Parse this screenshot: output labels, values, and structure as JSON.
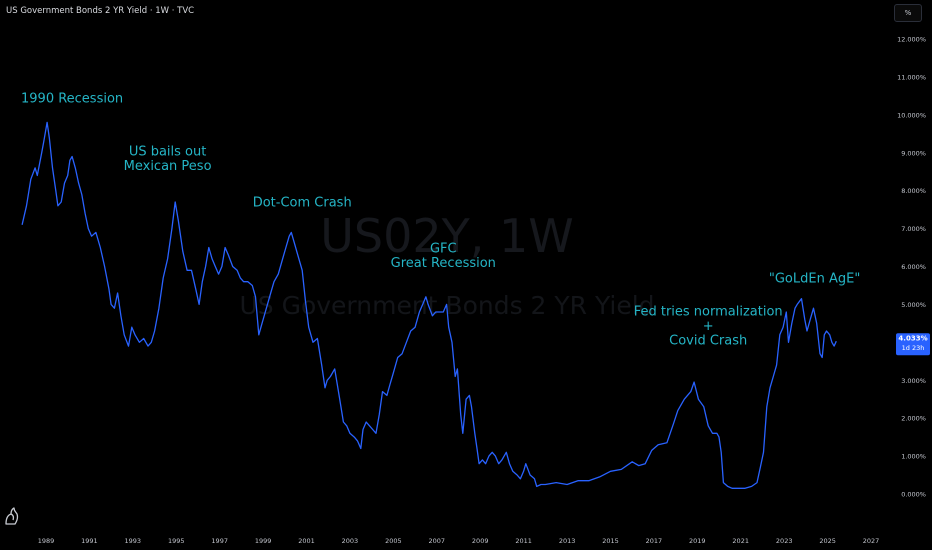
{
  "header": {
    "title": "US Government Bonds 2 YR Yield · 1W · TVC",
    "unit_label": "%"
  },
  "watermark": {
    "symbol": "US02Y, 1W",
    "name": "US Government Bonds 2 YR Yield"
  },
  "last_price": {
    "value": "4.033%",
    "countdown": "1d 23h",
    "raw": 4.03
  },
  "colors": {
    "line": "#2962ff",
    "annotation": "#25b5c6",
    "price_tag": "#2962ff",
    "background": "#000000"
  },
  "icons": [
    "tradingview-logo-icon"
  ],
  "chart_data": {
    "type": "line",
    "title": "US Government Bonds 2 YR Yield · 1W · TVC",
    "xlabel": "",
    "ylabel": "",
    "xlim": [
      1988.0,
      2027.5
    ],
    "ylim": [
      -0.5,
      12.5
    ],
    "grid": false,
    "y_ticks": [
      {
        "value": 12,
        "label": "12.000%"
      },
      {
        "value": 11,
        "label": "11.000%"
      },
      {
        "value": 10,
        "label": "10.000%"
      },
      {
        "value": 9,
        "label": "9.000%"
      },
      {
        "value": 8,
        "label": "8.000%"
      },
      {
        "value": 7,
        "label": "7.000%"
      },
      {
        "value": 6,
        "label": "6.000%"
      },
      {
        "value": 5,
        "label": "5.000%"
      },
      {
        "value": 3,
        "label": "3.000%"
      },
      {
        "value": 2,
        "label": "2.000%"
      },
      {
        "value": 1,
        "label": "1.000%"
      },
      {
        "value": 0,
        "label": "0.000%"
      }
    ],
    "x_ticks": [
      {
        "value": 1989,
        "label": "1989"
      },
      {
        "value": 1991,
        "label": "1991"
      },
      {
        "value": 1993,
        "label": "1993"
      },
      {
        "value": 1995,
        "label": "1995"
      },
      {
        "value": 1997,
        "label": "1997"
      },
      {
        "value": 1999,
        "label": "1999"
      },
      {
        "value": 2001,
        "label": "2001"
      },
      {
        "value": 2003,
        "label": "2003"
      },
      {
        "value": 2005,
        "label": "2005"
      },
      {
        "value": 2007,
        "label": "2007"
      },
      {
        "value": 2009,
        "label": "2009"
      },
      {
        "value": 2011,
        "label": "2011"
      },
      {
        "value": 2013,
        "label": "2013"
      },
      {
        "value": 2015,
        "label": "2015"
      },
      {
        "value": 2017,
        "label": "2017"
      },
      {
        "value": 2019,
        "label": "2019"
      },
      {
        "value": 2021,
        "label": "2021"
      },
      {
        "value": 2023,
        "label": "2023"
      },
      {
        "value": 2025,
        "label": "2025"
      },
      {
        "value": 2027,
        "label": "2027"
      }
    ],
    "series": [
      {
        "points": [
          [
            1987.9,
            7.1
          ],
          [
            1988.1,
            7.6
          ],
          [
            1988.3,
            8.3
          ],
          [
            1988.5,
            8.6
          ],
          [
            1988.6,
            8.4
          ],
          [
            1988.8,
            9.0
          ],
          [
            1988.9,
            9.3
          ],
          [
            1989.05,
            9.8
          ],
          [
            1989.15,
            9.4
          ],
          [
            1989.3,
            8.6
          ],
          [
            1989.45,
            8.0
          ],
          [
            1989.55,
            7.6
          ],
          [
            1989.7,
            7.7
          ],
          [
            1989.85,
            8.2
          ],
          [
            1990.0,
            8.4
          ],
          [
            1990.1,
            8.8
          ],
          [
            1990.2,
            8.9
          ],
          [
            1990.35,
            8.6
          ],
          [
            1990.5,
            8.2
          ],
          [
            1990.65,
            7.9
          ],
          [
            1990.8,
            7.4
          ],
          [
            1990.95,
            7.0
          ],
          [
            1991.1,
            6.8
          ],
          [
            1991.3,
            6.9
          ],
          [
            1991.5,
            6.5
          ],
          [
            1991.7,
            6.0
          ],
          [
            1991.9,
            5.4
          ],
          [
            1992.0,
            5.0
          ],
          [
            1992.15,
            4.9
          ],
          [
            1992.3,
            5.3
          ],
          [
            1992.45,
            4.7
          ],
          [
            1992.6,
            4.2
          ],
          [
            1992.8,
            3.9
          ],
          [
            1992.95,
            4.4
          ],
          [
            1993.1,
            4.2
          ],
          [
            1993.3,
            4.0
          ],
          [
            1993.5,
            4.1
          ],
          [
            1993.7,
            3.9
          ],
          [
            1993.85,
            4.0
          ],
          [
            1994.0,
            4.3
          ],
          [
            1994.2,
            4.9
          ],
          [
            1994.4,
            5.7
          ],
          [
            1994.6,
            6.2
          ],
          [
            1994.8,
            7.0
          ],
          [
            1994.95,
            7.7
          ],
          [
            1995.1,
            7.2
          ],
          [
            1995.3,
            6.4
          ],
          [
            1995.5,
            5.9
          ],
          [
            1995.7,
            5.9
          ],
          [
            1995.9,
            5.4
          ],
          [
            1996.05,
            5.0
          ],
          [
            1996.2,
            5.6
          ],
          [
            1996.35,
            6.0
          ],
          [
            1996.5,
            6.5
          ],
          [
            1996.65,
            6.2
          ],
          [
            1996.8,
            6.0
          ],
          [
            1996.95,
            5.8
          ],
          [
            1997.1,
            6.0
          ],
          [
            1997.25,
            6.5
          ],
          [
            1997.4,
            6.3
          ],
          [
            1997.6,
            6.0
          ],
          [
            1997.8,
            5.9
          ],
          [
            1997.95,
            5.7
          ],
          [
            1998.1,
            5.6
          ],
          [
            1998.3,
            5.6
          ],
          [
            1998.5,
            5.5
          ],
          [
            1998.65,
            5.2
          ],
          [
            1998.8,
            4.2
          ],
          [
            1998.95,
            4.5
          ],
          [
            1999.1,
            4.8
          ],
          [
            1999.3,
            5.2
          ],
          [
            1999.5,
            5.6
          ],
          [
            1999.7,
            5.8
          ],
          [
            1999.9,
            6.2
          ],
          [
            2000.05,
            6.5
          ],
          [
            2000.2,
            6.8
          ],
          [
            2000.3,
            6.9
          ],
          [
            2000.45,
            6.6
          ],
          [
            2000.6,
            6.3
          ],
          [
            2000.8,
            5.9
          ],
          [
            2000.95,
            5.1
          ],
          [
            2001.1,
            4.4
          ],
          [
            2001.3,
            4.0
          ],
          [
            2001.5,
            4.1
          ],
          [
            2001.7,
            3.4
          ],
          [
            2001.85,
            2.8
          ],
          [
            2001.95,
            3.0
          ],
          [
            2002.1,
            3.1
          ],
          [
            2002.3,
            3.3
          ],
          [
            2002.5,
            2.6
          ],
          [
            2002.7,
            1.9
          ],
          [
            2002.85,
            1.8
          ],
          [
            2003.0,
            1.6
          ],
          [
            2003.2,
            1.5
          ],
          [
            2003.35,
            1.4
          ],
          [
            2003.5,
            1.2
          ],
          [
            2003.6,
            1.7
          ],
          [
            2003.75,
            1.9
          ],
          [
            2003.9,
            1.8
          ],
          [
            2004.05,
            1.7
          ],
          [
            2004.2,
            1.6
          ],
          [
            2004.35,
            2.1
          ],
          [
            2004.5,
            2.7
          ],
          [
            2004.7,
            2.6
          ],
          [
            2004.85,
            2.9
          ],
          [
            2005.0,
            3.2
          ],
          [
            2005.2,
            3.6
          ],
          [
            2005.4,
            3.7
          ],
          [
            2005.6,
            4.0
          ],
          [
            2005.8,
            4.3
          ],
          [
            2006.0,
            4.4
          ],
          [
            2006.2,
            4.8
          ],
          [
            2006.35,
            5.0
          ],
          [
            2006.5,
            5.2
          ],
          [
            2006.6,
            5.0
          ],
          [
            2006.8,
            4.7
          ],
          [
            2006.95,
            4.8
          ],
          [
            2007.1,
            4.8
          ],
          [
            2007.3,
            4.8
          ],
          [
            2007.45,
            5.0
          ],
          [
            2007.55,
            4.4
          ],
          [
            2007.7,
            4.0
          ],
          [
            2007.85,
            3.1
          ],
          [
            2007.95,
            3.3
          ],
          [
            2008.1,
            2.1
          ],
          [
            2008.2,
            1.6
          ],
          [
            2008.35,
            2.5
          ],
          [
            2008.5,
            2.6
          ],
          [
            2008.6,
            2.3
          ],
          [
            2008.75,
            1.6
          ],
          [
            2008.85,
            1.2
          ],
          [
            2008.95,
            0.8
          ],
          [
            2009.1,
            0.9
          ],
          [
            2009.25,
            0.8
          ],
          [
            2009.4,
            1.0
          ],
          [
            2009.55,
            1.1
          ],
          [
            2009.7,
            1.0
          ],
          [
            2009.85,
            0.8
          ],
          [
            2010.0,
            0.9
          ],
          [
            2010.2,
            1.1
          ],
          [
            2010.35,
            0.8
          ],
          [
            2010.5,
            0.6
          ],
          [
            2010.7,
            0.5
          ],
          [
            2010.85,
            0.4
          ],
          [
            2011.0,
            0.6
          ],
          [
            2011.1,
            0.8
          ],
          [
            2011.3,
            0.5
          ],
          [
            2011.5,
            0.4
          ],
          [
            2011.6,
            0.2
          ],
          [
            2011.8,
            0.25
          ],
          [
            2012.0,
            0.25
          ],
          [
            2012.5,
            0.3
          ],
          [
            2013.0,
            0.25
          ],
          [
            2013.5,
            0.35
          ],
          [
            2014.0,
            0.35
          ],
          [
            2014.5,
            0.45
          ],
          [
            2015.0,
            0.6
          ],
          [
            2015.5,
            0.65
          ],
          [
            2016.0,
            0.85
          ],
          [
            2016.3,
            0.75
          ],
          [
            2016.6,
            0.8
          ],
          [
            2016.9,
            1.15
          ],
          [
            2017.2,
            1.3
          ],
          [
            2017.6,
            1.35
          ],
          [
            2017.9,
            1.85
          ],
          [
            2018.1,
            2.2
          ],
          [
            2018.4,
            2.5
          ],
          [
            2018.7,
            2.7
          ],
          [
            2018.85,
            2.95
          ],
          [
            2019.05,
            2.5
          ],
          [
            2019.3,
            2.3
          ],
          [
            2019.5,
            1.8
          ],
          [
            2019.7,
            1.6
          ],
          [
            2019.9,
            1.6
          ],
          [
            2020.0,
            1.5
          ],
          [
            2020.1,
            1.1
          ],
          [
            2020.2,
            0.3
          ],
          [
            2020.4,
            0.2
          ],
          [
            2020.6,
            0.15
          ],
          [
            2020.9,
            0.15
          ],
          [
            2021.2,
            0.15
          ],
          [
            2021.5,
            0.2
          ],
          [
            2021.75,
            0.3
          ],
          [
            2021.9,
            0.7
          ],
          [
            2022.05,
            1.1
          ],
          [
            2022.2,
            2.3
          ],
          [
            2022.35,
            2.8
          ],
          [
            2022.5,
            3.1
          ],
          [
            2022.65,
            3.4
          ],
          [
            2022.8,
            4.2
          ],
          [
            2022.95,
            4.4
          ],
          [
            2023.1,
            4.8
          ],
          [
            2023.2,
            4.0
          ],
          [
            2023.35,
            4.5
          ],
          [
            2023.5,
            4.9
          ],
          [
            2023.6,
            5.0
          ],
          [
            2023.8,
            5.15
          ],
          [
            2023.95,
            4.6
          ],
          [
            2024.05,
            4.3
          ],
          [
            2024.2,
            4.6
          ],
          [
            2024.35,
            4.9
          ],
          [
            2024.5,
            4.5
          ],
          [
            2024.65,
            3.7
          ],
          [
            2024.75,
            3.6
          ],
          [
            2024.85,
            4.2
          ],
          [
            2024.95,
            4.3
          ],
          [
            2025.1,
            4.2
          ],
          [
            2025.2,
            4.0
          ],
          [
            2025.3,
            3.9
          ],
          [
            2025.4,
            4.03
          ]
        ]
      }
    ],
    "annotations": [
      {
        "lines": [
          "1990 Recession"
        ],
        "x": 1990.2,
        "y": 10.45
      },
      {
        "lines": [
          "US bails out",
          "Mexican Peso"
        ],
        "x": 1994.6,
        "y": 8.85
      },
      {
        "lines": [
          "Dot-Com Crash"
        ],
        "x": 2000.8,
        "y": 7.7
      },
      {
        "lines": [
          "GFC",
          "Great Recession"
        ],
        "x": 2007.3,
        "y": 6.3
      },
      {
        "lines": [
          "Fed tries normalization",
          "+",
          "Covid Crash"
        ],
        "x": 2019.5,
        "y": 4.45
      },
      {
        "lines": [
          "\"GoLdEn AgE\""
        ],
        "x": 2024.4,
        "y": 5.7
      }
    ]
  }
}
